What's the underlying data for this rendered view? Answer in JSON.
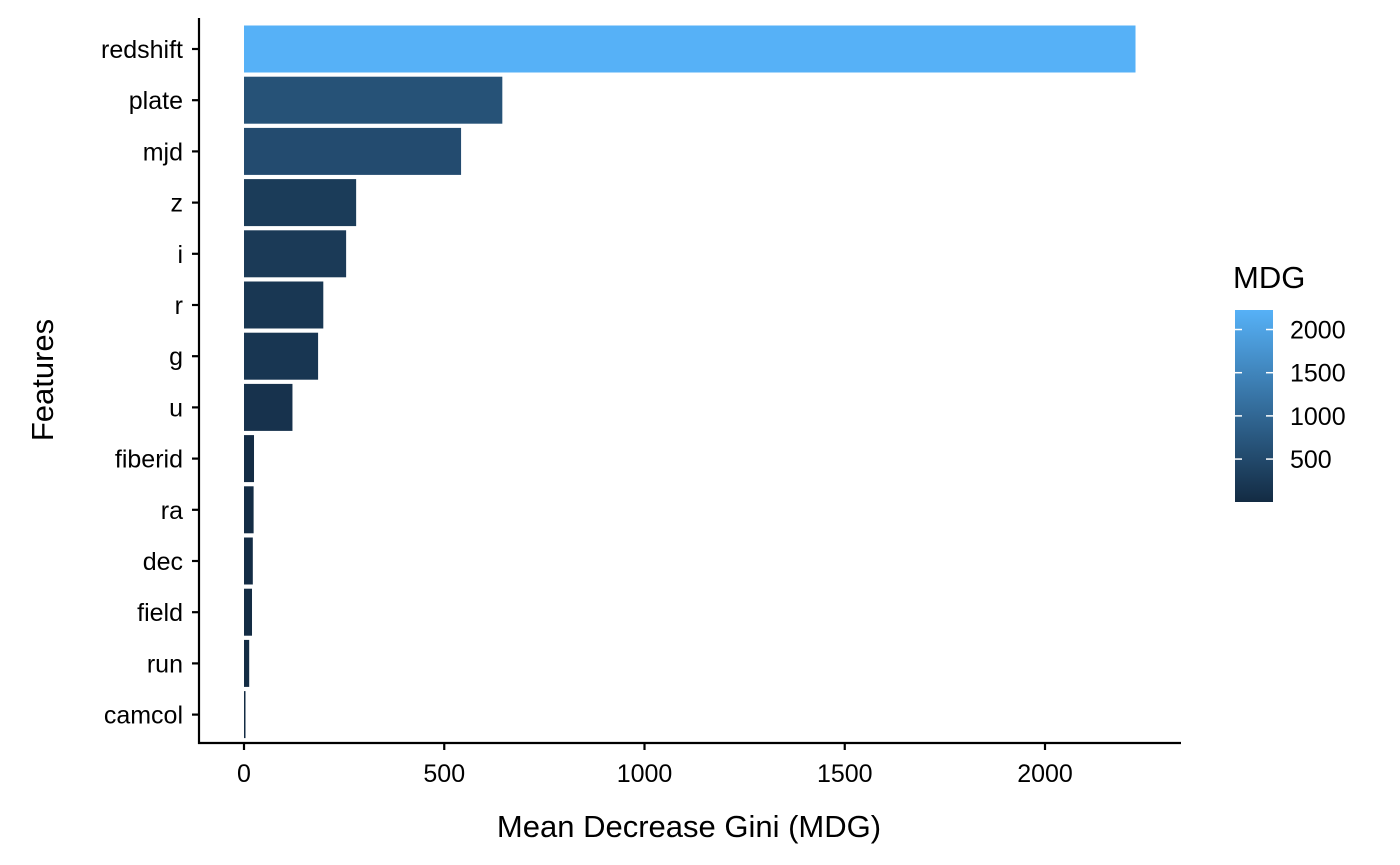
{
  "chart_data": {
    "type": "bar",
    "orientation": "horizontal",
    "xlabel": "Mean Decrease Gini (MDG)",
    "ylabel": "Features",
    "xlim": [
      -110,
      2330
    ],
    "x_ticks": [
      0,
      500,
      1000,
      1500,
      2000
    ],
    "grid": false,
    "categories": [
      "redshift",
      "plate",
      "mjd",
      "z",
      "i",
      "r",
      "g",
      "u",
      "fiberid",
      "ra",
      "dec",
      "field",
      "run",
      "camcol"
    ],
    "values": [
      2226,
      645,
      542,
      280,
      255,
      198,
      185,
      121,
      25,
      24,
      22,
      20,
      13,
      3
    ],
    "legend": {
      "title": "MDG",
      "position": "right",
      "ticks": [
        500,
        1000,
        1500,
        2000
      ],
      "range": [
        3,
        2226
      ],
      "low_color": "#132B43",
      "high_color": "#56B1F7"
    }
  }
}
